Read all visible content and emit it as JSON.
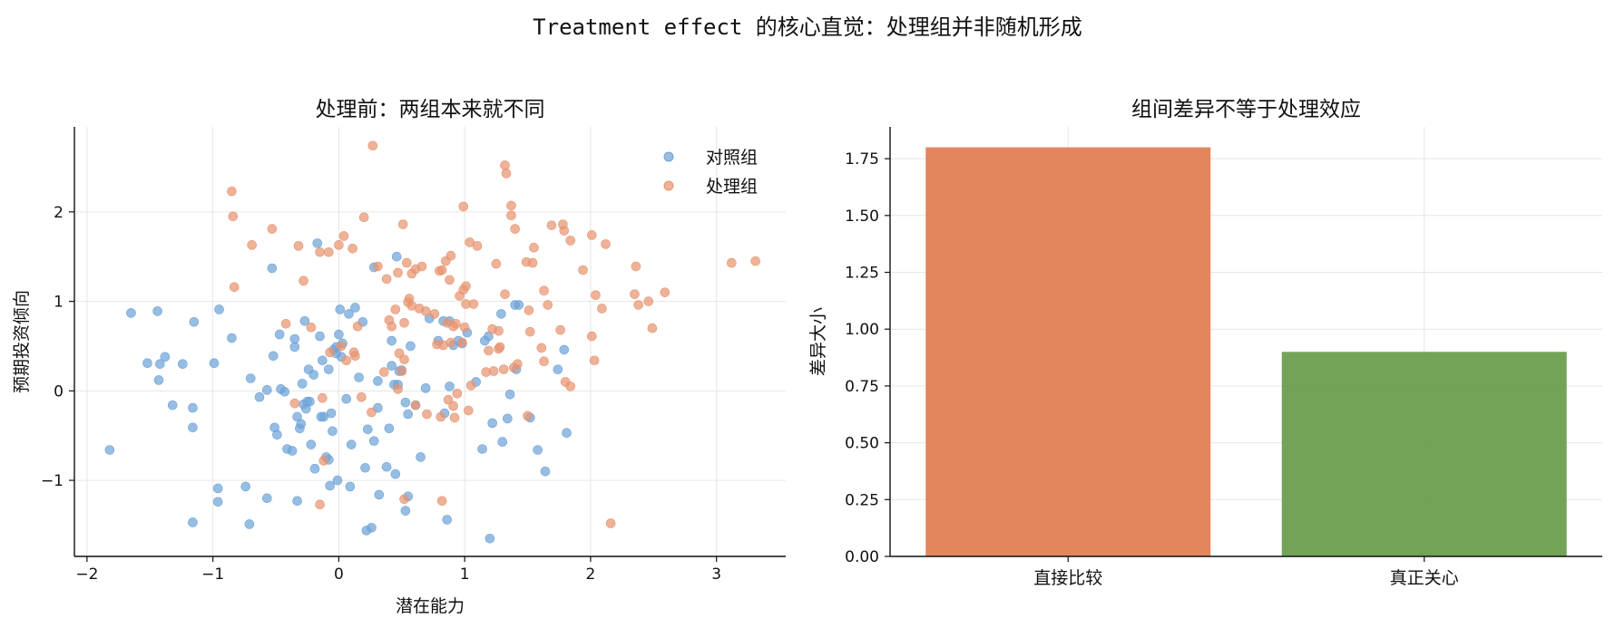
{
  "figure_title": "Treatment effect 的核心直觉：处理组并非随机形成",
  "colors": {
    "control": "#6fa3d8",
    "treatment": "#e79470",
    "bar_direct": "#e07f55",
    "bar_true": "#6a9e4e"
  },
  "chart_data": [
    {
      "type": "scatter",
      "title": "处理前：两组本来就不同",
      "xlabel": "潜在能力",
      "ylabel": "预期投资倾向",
      "xlim": [
        -2.1,
        3.55
      ],
      "ylim": [
        -1.85,
        2.95
      ],
      "xticks": [
        -2,
        -1,
        0,
        1,
        2,
        3
      ],
      "yticks": [
        -1,
        0,
        1,
        2
      ],
      "grid": true,
      "legend_position": "top-right",
      "series": [
        {
          "name": "对照组",
          "points": [
            [
              -1.82,
              -0.66
            ],
            [
              -1.65,
              0.87
            ],
            [
              -1.44,
              0.89
            ],
            [
              -1.52,
              0.31
            ],
            [
              -1.38,
              0.38
            ],
            [
              -1.42,
              0.3
            ],
            [
              -1.24,
              0.3
            ],
            [
              -1.43,
              0.12
            ],
            [
              -1.32,
              -0.16
            ],
            [
              -1.16,
              -0.19
            ],
            [
              -1.16,
              -0.41
            ],
            [
              -1.15,
              0.77
            ],
            [
              -1.16,
              -1.47
            ],
            [
              -0.99,
              0.31
            ],
            [
              -0.95,
              0.91
            ],
            [
              -0.96,
              -1.09
            ],
            [
              -0.96,
              -1.24
            ],
            [
              -0.85,
              0.59
            ],
            [
              -0.74,
              -1.07
            ],
            [
              -0.71,
              -1.49
            ],
            [
              -0.7,
              0.14
            ],
            [
              -0.63,
              -0.07
            ],
            [
              -0.57,
              -1.2
            ],
            [
              -0.57,
              0.01
            ],
            [
              -0.53,
              1.37
            ],
            [
              -0.52,
              0.39
            ],
            [
              -0.51,
              -0.41
            ],
            [
              -0.49,
              -0.49
            ],
            [
              -0.47,
              0.63
            ],
            [
              -0.46,
              0.02
            ],
            [
              -0.43,
              -0.01
            ],
            [
              -0.41,
              -0.65
            ],
            [
              -0.37,
              -0.67
            ],
            [
              -0.35,
              0.49
            ],
            [
              -0.35,
              0.58
            ],
            [
              -0.33,
              -0.29
            ],
            [
              -0.33,
              -1.23
            ],
            [
              -0.31,
              -0.42
            ],
            [
              -0.3,
              -0.37
            ],
            [
              -0.29,
              0.08
            ],
            [
              -0.28,
              -0.15
            ],
            [
              -0.26,
              -0.2
            ],
            [
              -0.27,
              0.78
            ],
            [
              -0.25,
              -0.12
            ],
            [
              -0.24,
              0.24
            ],
            [
              -0.23,
              -0.12
            ],
            [
              -0.22,
              -0.6
            ],
            [
              -0.2,
              0.18
            ],
            [
              -0.19,
              -0.87
            ],
            [
              -0.17,
              1.65
            ],
            [
              -0.15,
              0.61
            ],
            [
              -0.14,
              -0.29
            ],
            [
              -0.13,
              0.34
            ],
            [
              -0.12,
              -0.29
            ],
            [
              -0.1,
              -0.74
            ],
            [
              -0.08,
              -0.77
            ],
            [
              -0.08,
              0.24
            ],
            [
              -0.07,
              -1.06
            ],
            [
              -0.06,
              -0.25
            ],
            [
              -0.05,
              -0.45
            ],
            [
              -0.04,
              0.46
            ],
            [
              -0.02,
              0.42
            ],
            [
              -0.01,
              -1.0
            ],
            [
              -0.02,
              0.49
            ],
            [
              0.0,
              0.63
            ],
            [
              0.01,
              0.91
            ],
            [
              0.02,
              0.38
            ],
            [
              0.03,
              0.53
            ],
            [
              0.06,
              -0.09
            ],
            [
              0.08,
              0.86
            ],
            [
              0.09,
              -1.07
            ],
            [
              0.1,
              -0.6
            ],
            [
              0.13,
              0.93
            ],
            [
              0.16,
              0.15
            ],
            [
              0.19,
              0.77
            ],
            [
              0.21,
              -0.86
            ],
            [
              0.22,
              -1.56
            ],
            [
              0.23,
              -0.43
            ],
            [
              0.26,
              -1.53
            ],
            [
              0.28,
              -0.56
            ],
            [
              0.28,
              1.38
            ],
            [
              0.31,
              0.11
            ],
            [
              0.31,
              -0.19
            ],
            [
              0.32,
              -1.16
            ],
            [
              0.38,
              -0.85
            ],
            [
              0.4,
              -0.42
            ],
            [
              0.42,
              0.28
            ],
            [
              0.42,
              0.56
            ],
            [
              0.45,
              -0.93
            ],
            [
              0.44,
              0.07
            ],
            [
              0.46,
              1.5
            ],
            [
              0.47,
              0.07
            ],
            [
              0.48,
              0.22
            ],
            [
              0.5,
              0.23
            ],
            [
              0.53,
              -0.13
            ],
            [
              0.53,
              -1.34
            ],
            [
              0.55,
              -0.26
            ],
            [
              0.55,
              -1.18
            ],
            [
              0.57,
              0.5
            ],
            [
              0.61,
              -0.16
            ],
            [
              0.65,
              -0.74
            ],
            [
              0.69,
              0.03
            ],
            [
              0.72,
              0.81
            ],
            [
              0.79,
              0.56
            ],
            [
              0.83,
              0.78
            ],
            [
              0.84,
              -0.25
            ],
            [
              0.86,
              -1.44
            ],
            [
              0.88,
              0.78
            ],
            [
              0.88,
              0.05
            ],
            [
              0.91,
              0.51
            ],
            [
              0.95,
              0.56
            ],
            [
              0.98,
              0.53
            ],
            [
              1.02,
              0.65
            ],
            [
              1.09,
              0.1
            ],
            [
              1.14,
              -0.65
            ],
            [
              1.16,
              0.56
            ],
            [
              1.19,
              0.61
            ],
            [
              1.2,
              -1.65
            ],
            [
              1.22,
              -0.36
            ],
            [
              1.29,
              0.86
            ],
            [
              1.3,
              -0.57
            ],
            [
              1.34,
              -0.31
            ],
            [
              1.36,
              -0.04
            ],
            [
              1.4,
              0.96
            ],
            [
              1.41,
              0.24
            ],
            [
              1.43,
              0.96
            ],
            [
              1.52,
              -0.3
            ],
            [
              1.58,
              -0.66
            ],
            [
              1.64,
              -0.9
            ],
            [
              1.74,
              0.24
            ],
            [
              1.79,
              0.46
            ],
            [
              1.81,
              -0.47
            ]
          ]
        },
        {
          "name": "处理组",
          "points": [
            [
              -0.85,
              2.23
            ],
            [
              -0.84,
              1.95
            ],
            [
              -0.83,
              1.16
            ],
            [
              -0.69,
              1.63
            ],
            [
              -0.53,
              1.81
            ],
            [
              -0.42,
              0.75
            ],
            [
              -0.35,
              -0.14
            ],
            [
              -0.32,
              1.62
            ],
            [
              -0.28,
              1.23
            ],
            [
              -0.22,
              0.71
            ],
            [
              -0.15,
              1.55
            ],
            [
              -0.15,
              -1.27
            ],
            [
              -0.13,
              -0.08
            ],
            [
              -0.12,
              -0.78
            ],
            [
              -0.08,
              1.55
            ],
            [
              -0.07,
              0.43
            ],
            [
              0.0,
              1.63
            ],
            [
              0.02,
              0.5
            ],
            [
              0.04,
              1.73
            ],
            [
              0.06,
              0.34
            ],
            [
              0.11,
              1.59
            ],
            [
              0.12,
              0.43
            ],
            [
              0.13,
              0.39
            ],
            [
              0.15,
              0.72
            ],
            [
              0.18,
              -0.07
            ],
            [
              0.2,
              1.94
            ],
            [
              0.26,
              -0.24
            ],
            [
              0.27,
              2.74
            ],
            [
              0.31,
              1.39
            ],
            [
              0.36,
              0.21
            ],
            [
              0.38,
              1.25
            ],
            [
              0.4,
              0.79
            ],
            [
              0.42,
              0.72
            ],
            [
              0.45,
              0.91
            ],
            [
              0.47,
              1.32
            ],
            [
              0.47,
              0.02
            ],
            [
              0.48,
              0.42
            ],
            [
              0.5,
              0.22
            ],
            [
              0.51,
              1.86
            ],
            [
              0.52,
              0.35
            ],
            [
              0.52,
              -1.21
            ],
            [
              0.52,
              0.76
            ],
            [
              0.54,
              1.43
            ],
            [
              0.55,
              0.99
            ],
            [
              0.56,
              1.03
            ],
            [
              0.58,
              1.31
            ],
            [
              0.58,
              0.95
            ],
            [
              0.61,
              -0.16
            ],
            [
              0.61,
              1.36
            ],
            [
              0.64,
              0.92
            ],
            [
              0.66,
              1.39
            ],
            [
              0.69,
              0.89
            ],
            [
              0.7,
              -0.26
            ],
            [
              0.76,
              0.86
            ],
            [
              0.78,
              0.52
            ],
            [
              0.8,
              1.34
            ],
            [
              0.81,
              -0.29
            ],
            [
              0.82,
              -1.23
            ],
            [
              0.82,
              1.35
            ],
            [
              0.83,
              0.51
            ],
            [
              0.85,
              1.45
            ],
            [
              0.86,
              0.76
            ],
            [
              0.87,
              -0.1
            ],
            [
              0.88,
              1.24
            ],
            [
              0.89,
              1.51
            ],
            [
              0.89,
              0.54
            ],
            [
              0.91,
              0.72
            ],
            [
              0.91,
              -0.17
            ],
            [
              0.92,
              -0.3
            ],
            [
              0.93,
              0.75
            ],
            [
              0.94,
              -0.03
            ],
            [
              0.96,
              1.06
            ],
            [
              0.98,
              0.54
            ],
            [
              0.99,
              2.06
            ],
            [
              0.99,
              1.13
            ],
            [
              1.0,
              0.71
            ],
            [
              1.01,
              1.17
            ],
            [
              1.01,
              0.97
            ],
            [
              1.03,
              -0.22
            ],
            [
              1.04,
              1.66
            ],
            [
              1.05,
              0.06
            ],
            [
              1.07,
              0.97
            ],
            [
              1.1,
              1.62
            ],
            [
              1.17,
              0.21
            ],
            [
              1.19,
              0.45
            ],
            [
              1.22,
              0.69
            ],
            [
              1.23,
              0.22
            ],
            [
              1.25,
              1.42
            ],
            [
              1.27,
              0.67
            ],
            [
              1.27,
              0.47
            ],
            [
              1.28,
              0.49
            ],
            [
              1.31,
              0.24
            ],
            [
              1.32,
              1.08
            ],
            [
              1.32,
              2.52
            ],
            [
              1.33,
              2.43
            ],
            [
              1.37,
              2.07
            ],
            [
              1.37,
              1.96
            ],
            [
              1.39,
              0.26
            ],
            [
              1.4,
              1.81
            ],
            [
              1.42,
              0.3
            ],
            [
              1.49,
              1.44
            ],
            [
              1.5,
              -0.28
            ],
            [
              1.51,
              0.9
            ],
            [
              1.52,
              0.66
            ],
            [
              1.54,
              1.43
            ],
            [
              1.55,
              1.6
            ],
            [
              1.61,
              0.48
            ],
            [
              1.63,
              1.12
            ],
            [
              1.63,
              0.33
            ],
            [
              1.66,
              0.96
            ],
            [
              1.69,
              1.85
            ],
            [
              1.76,
              0.68
            ],
            [
              1.78,
              1.86
            ],
            [
              1.79,
              1.79
            ],
            [
              1.8,
              0.1
            ],
            [
              1.84,
              0.05
            ],
            [
              1.84,
              1.68
            ],
            [
              1.94,
              1.35
            ],
            [
              2.01,
              0.61
            ],
            [
              2.01,
              1.74
            ],
            [
              2.03,
              0.34
            ],
            [
              2.04,
              1.07
            ],
            [
              2.09,
              0.92
            ],
            [
              2.12,
              1.64
            ],
            [
              2.16,
              -1.48
            ],
            [
              2.35,
              1.08
            ],
            [
              2.36,
              1.39
            ],
            [
              2.38,
              0.96
            ],
            [
              2.46,
              1.0
            ],
            [
              2.49,
              0.7
            ],
            [
              2.59,
              1.1
            ],
            [
              3.12,
              1.43
            ],
            [
              3.31,
              1.45
            ]
          ]
        }
      ]
    },
    {
      "type": "bar",
      "title": "组间差异不等于处理效应",
      "xlabel": "",
      "ylabel": "差异大小",
      "categories": [
        "直接比较",
        "真正关心"
      ],
      "values": [
        1.8,
        0.9
      ],
      "ylim": [
        0,
        1.89
      ],
      "yticks": [
        0.0,
        0.25,
        0.5,
        0.75,
        1.0,
        1.25,
        1.5,
        1.75
      ],
      "ytick_labels": [
        "0.00",
        "0.25",
        "0.50",
        "0.75",
        "1.00",
        "1.25",
        "1.50",
        "1.75"
      ],
      "grid": true
    }
  ]
}
